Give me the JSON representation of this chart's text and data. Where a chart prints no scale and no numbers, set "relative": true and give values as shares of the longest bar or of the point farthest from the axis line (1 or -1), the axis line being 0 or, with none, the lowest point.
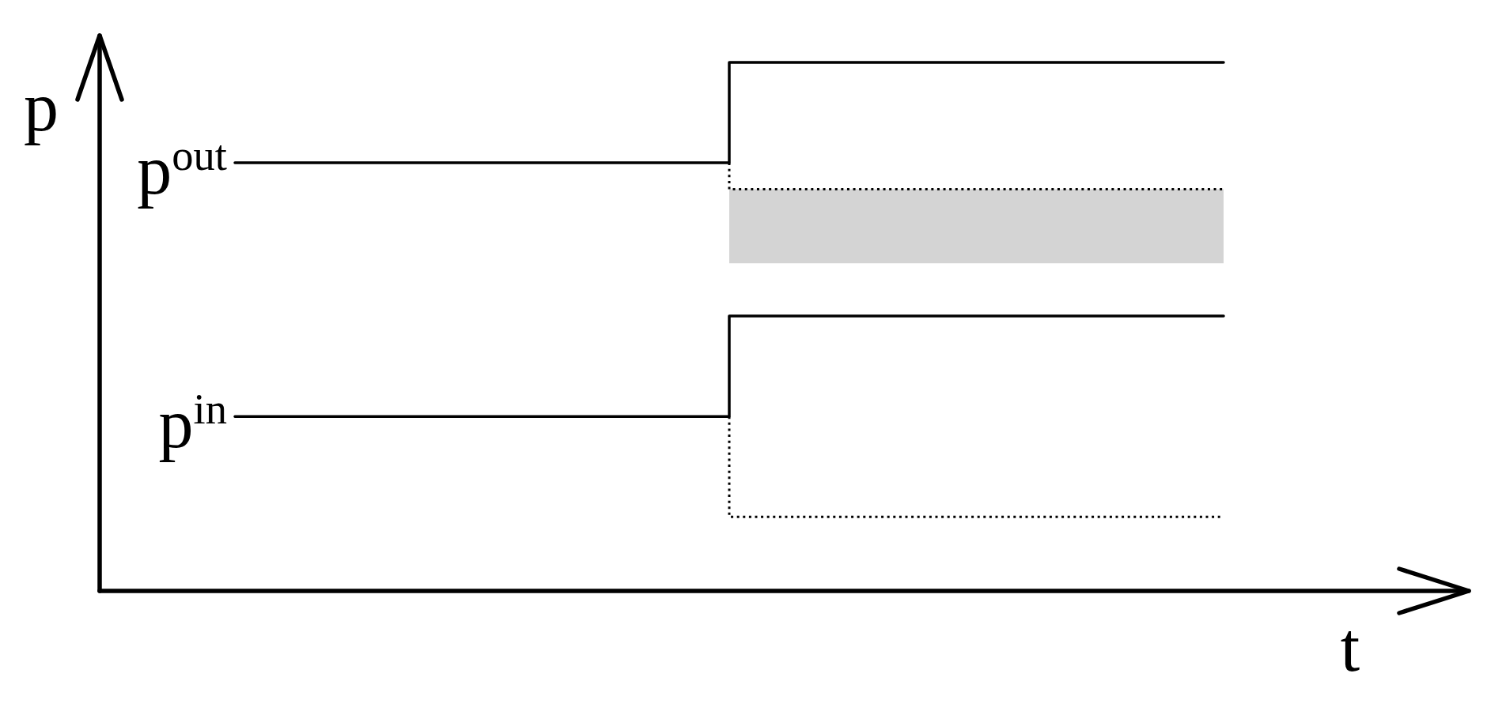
{
  "chart_data": {
    "type": "step",
    "relative": true,
    "xlabel": "t",
    "ylabel": "p",
    "categories": [
      null,
      null,
      null
    ],
    "marker": "none",
    "series": [
      {
        "name": "p$^{out}$",
        "color": "#000000",
        "values": [
          0.81,
          0.81,
          1
        ],
        "line_style": "solid"
      },
      {
        "color": "#000000",
        "values": [
          null,
          0.81,
          0.76
        ],
        "line_style": "dotted",
        "lower": [
          null,
          0.62,
          0.62
        ],
        "upper": [
          null,
          0.76,
          0.76
        ]
      },
      {
        "name": "p$^{in}$",
        "color": "#000000",
        "values": [
          0.33,
          0.33,
          0.52
        ],
        "line_style": "solid"
      },
      {
        "color": "#000000",
        "values": [
          null,
          0.33,
          0.14
        ],
        "line_style": "dotted"
      }
    ]
  }
}
